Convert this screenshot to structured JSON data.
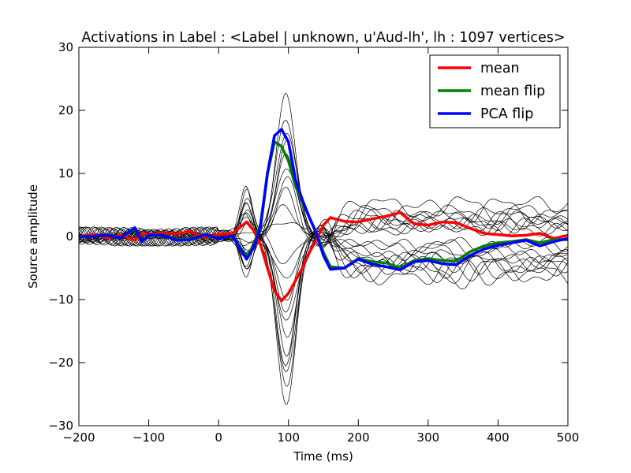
{
  "chart_data": {
    "type": "line",
    "title": "Activations in Label : <Label  |  unknown, u'Aud-lh', lh : 1097 vertices>",
    "xlabel": "Time (ms)",
    "ylabel": "Source amplitude",
    "xlim": [
      -200,
      500
    ],
    "ylim": [
      -30,
      30
    ],
    "xticks": [
      -200,
      -100,
      0,
      100,
      200,
      300,
      400,
      500
    ],
    "yticks": [
      -30,
      -20,
      -10,
      0,
      10,
      20,
      30
    ],
    "xtick_labels": [
      "−200",
      "−100",
      "0",
      "100",
      "200",
      "300",
      "400",
      "500"
    ],
    "ytick_labels": [
      "−30",
      "−20",
      "−10",
      "0",
      "10",
      "20",
      "30"
    ],
    "grid": false,
    "legend_position": "top-right",
    "series": [
      {
        "name": "mean",
        "color": "#ff0000",
        "x": [
          -200,
          -180,
          -160,
          -140,
          -120,
          -110,
          -100,
          -80,
          -60,
          -40,
          -20,
          0,
          20,
          40,
          50,
          60,
          70,
          80,
          90,
          100,
          110,
          120,
          130,
          140,
          150,
          160,
          180,
          200,
          220,
          240,
          260,
          280,
          300,
          320,
          340,
          360,
          380,
          400,
          420,
          440,
          460,
          480,
          500
        ],
        "y": [
          0,
          0.3,
          -0.2,
          0.2,
          -0.6,
          0.5,
          0.3,
          0.6,
          0.4,
          0.8,
          -0.2,
          0.3,
          0.5,
          2.3,
          1.0,
          -1.3,
          -5.0,
          -8.6,
          -10.2,
          -9.0,
          -7.0,
          -5.0,
          -2.5,
          -0.5,
          1.8,
          3.0,
          2.4,
          2.3,
          2.8,
          3.2,
          3.8,
          2.0,
          1.8,
          2.3,
          2.2,
          1.3,
          0.5,
          0.3,
          0.1,
          0.2,
          0.5,
          -0.3,
          0.2
        ]
      },
      {
        "name": "mean flip",
        "color": "#008000",
        "x": [
          -200,
          -180,
          -160,
          -140,
          -120,
          -110,
          -100,
          -80,
          -60,
          -40,
          -20,
          0,
          20,
          40,
          50,
          60,
          70,
          80,
          90,
          100,
          110,
          120,
          130,
          140,
          150,
          160,
          180,
          200,
          220,
          240,
          260,
          280,
          300,
          320,
          340,
          360,
          380,
          400,
          420,
          440,
          460,
          480,
          500
        ],
        "y": [
          0,
          0,
          0.2,
          -0.2,
          1.2,
          -0.8,
          0.2,
          0.3,
          -0.5,
          -0.4,
          0.2,
          -0.3,
          0.1,
          -3.2,
          -1.5,
          2.0,
          10.0,
          15.0,
          14.3,
          12.0,
          8.0,
          5.5,
          3.0,
          0.5,
          -2.5,
          -4.8,
          -5.0,
          -3.5,
          -4.0,
          -4.2,
          -5.0,
          -3.8,
          -3.5,
          -3.8,
          -3.9,
          -2.4,
          -1.5,
          -1.0,
          -0.8,
          -0.5,
          -1.0,
          -0.5,
          -0.5
        ]
      },
      {
        "name": "PCA flip",
        "color": "#0000ff",
        "x": [
          -200,
          -180,
          -160,
          -140,
          -120,
          -110,
          -100,
          -80,
          -60,
          -40,
          -20,
          0,
          20,
          40,
          50,
          60,
          70,
          80,
          90,
          100,
          110,
          120,
          130,
          140,
          150,
          160,
          180,
          200,
          220,
          240,
          260,
          280,
          300,
          320,
          340,
          360,
          380,
          400,
          420,
          440,
          460,
          480,
          500
        ],
        "y": [
          0,
          0,
          0.2,
          -0.2,
          1.4,
          -0.8,
          0.2,
          0.2,
          -0.6,
          -0.5,
          0.3,
          -0.3,
          0.1,
          -3.6,
          -1.8,
          1.5,
          10.0,
          16.0,
          17.0,
          15.0,
          9.0,
          5.8,
          3.0,
          0.5,
          -3.0,
          -5.2,
          -5.0,
          -3.6,
          -4.4,
          -4.8,
          -5.3,
          -4.0,
          -3.8,
          -4.3,
          -4.5,
          -3.0,
          -2.0,
          -1.4,
          -1.0,
          -0.6,
          -1.5,
          -0.8,
          -0.3
        ]
      }
    ],
    "background_traces": [
      {
        "peak": 22.0,
        "late": 4.5
      },
      {
        "peak": 19.0,
        "late": 3.5
      },
      {
        "peak": 17.0,
        "late": 2.8
      },
      {
        "peak": 15.0,
        "late": 4.2
      },
      {
        "peak": 13.0,
        "late": 3.0
      },
      {
        "peak": 11.0,
        "late": 2.2
      },
      {
        "peak": 9.0,
        "late": 1.8
      },
      {
        "peak": 7.0,
        "late": 2.6
      },
      {
        "peak": 5.0,
        "late": 1.5
      },
      {
        "peak": 3.0,
        "late": 1.2
      },
      {
        "peak": -4.0,
        "late": -1.2
      },
      {
        "peak": -7.0,
        "late": -1.6
      },
      {
        "peak": -10.0,
        "late": -2.5
      },
      {
        "peak": -12.0,
        "late": -3.5
      },
      {
        "peak": -14.0,
        "late": -4.2
      },
      {
        "peak": -16.0,
        "late": -4.8
      },
      {
        "peak": -18.0,
        "late": -5.3
      },
      {
        "peak": -20.0,
        "late": -3.8
      },
      {
        "peak": -22.0,
        "late": -4.5
      },
      {
        "peak": -24.0,
        "late": -5.5
      },
      {
        "peak": -26.5,
        "late": -5.0
      }
    ],
    "background_color": "#000000"
  }
}
